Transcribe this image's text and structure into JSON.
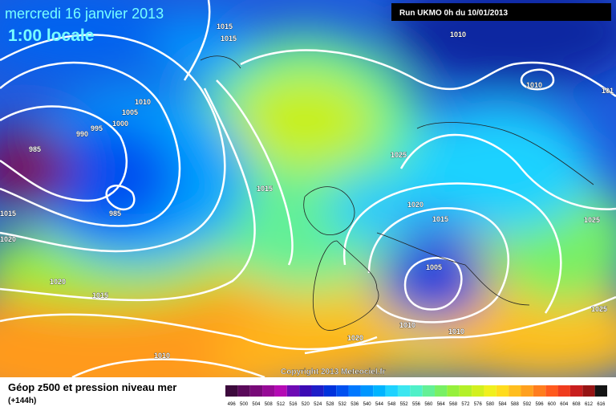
{
  "header": {
    "date": "mercredi 16 janvier 2013",
    "time": "1:00 locale",
    "run": "Run UKMO 0h du 10/01/2013"
  },
  "isobar_labels": [
    "1015",
    "1015",
    "1010",
    "1010",
    "101",
    "1010",
    "1005",
    "1000",
    "995",
    "990",
    "985",
    "985",
    "1015",
    "1025",
    "1020",
    "1015",
    "1025",
    "1015",
    "1020",
    "1020",
    "1015",
    "1005",
    "1025",
    "1010",
    "1010",
    "1020",
    "1010"
  ],
  "copyright": "Copyright 2013 Meteociel.fr",
  "legend": {
    "title": "Géop z500 et pression niveau mer",
    "subtitle": "(+144h)",
    "labels": [
      "496",
      "500",
      "504",
      "508",
      "512",
      "516",
      "520",
      "524",
      "528",
      "532",
      "536",
      "540",
      "544",
      "548",
      "552",
      "556",
      "560",
      "564",
      "568",
      "572",
      "576",
      "580",
      "584",
      "588",
      "592",
      "596",
      "600",
      "604",
      "608",
      "612",
      "616"
    ],
    "colors": [
      "#3c0a3c",
      "#5a0a5a",
      "#780a78",
      "#960a96",
      "#b40ab4",
      "#6e0ab4",
      "#3c0ab4",
      "#1e1ec8",
      "#0032dc",
      "#0050f0",
      "#0078ff",
      "#0096ff",
      "#00b4ff",
      "#1ed2ff",
      "#3ce6f0",
      "#50f0c8",
      "#64f096",
      "#78f064",
      "#96f03c",
      "#b4f028",
      "#d2f01e",
      "#f0f01e",
      "#ffdc1e",
      "#ffbe1e",
      "#ffa01e",
      "#ff7d1e",
      "#ff5a1e",
      "#f03c1e",
      "#c81e1e",
      "#961414",
      "#141414"
    ]
  }
}
